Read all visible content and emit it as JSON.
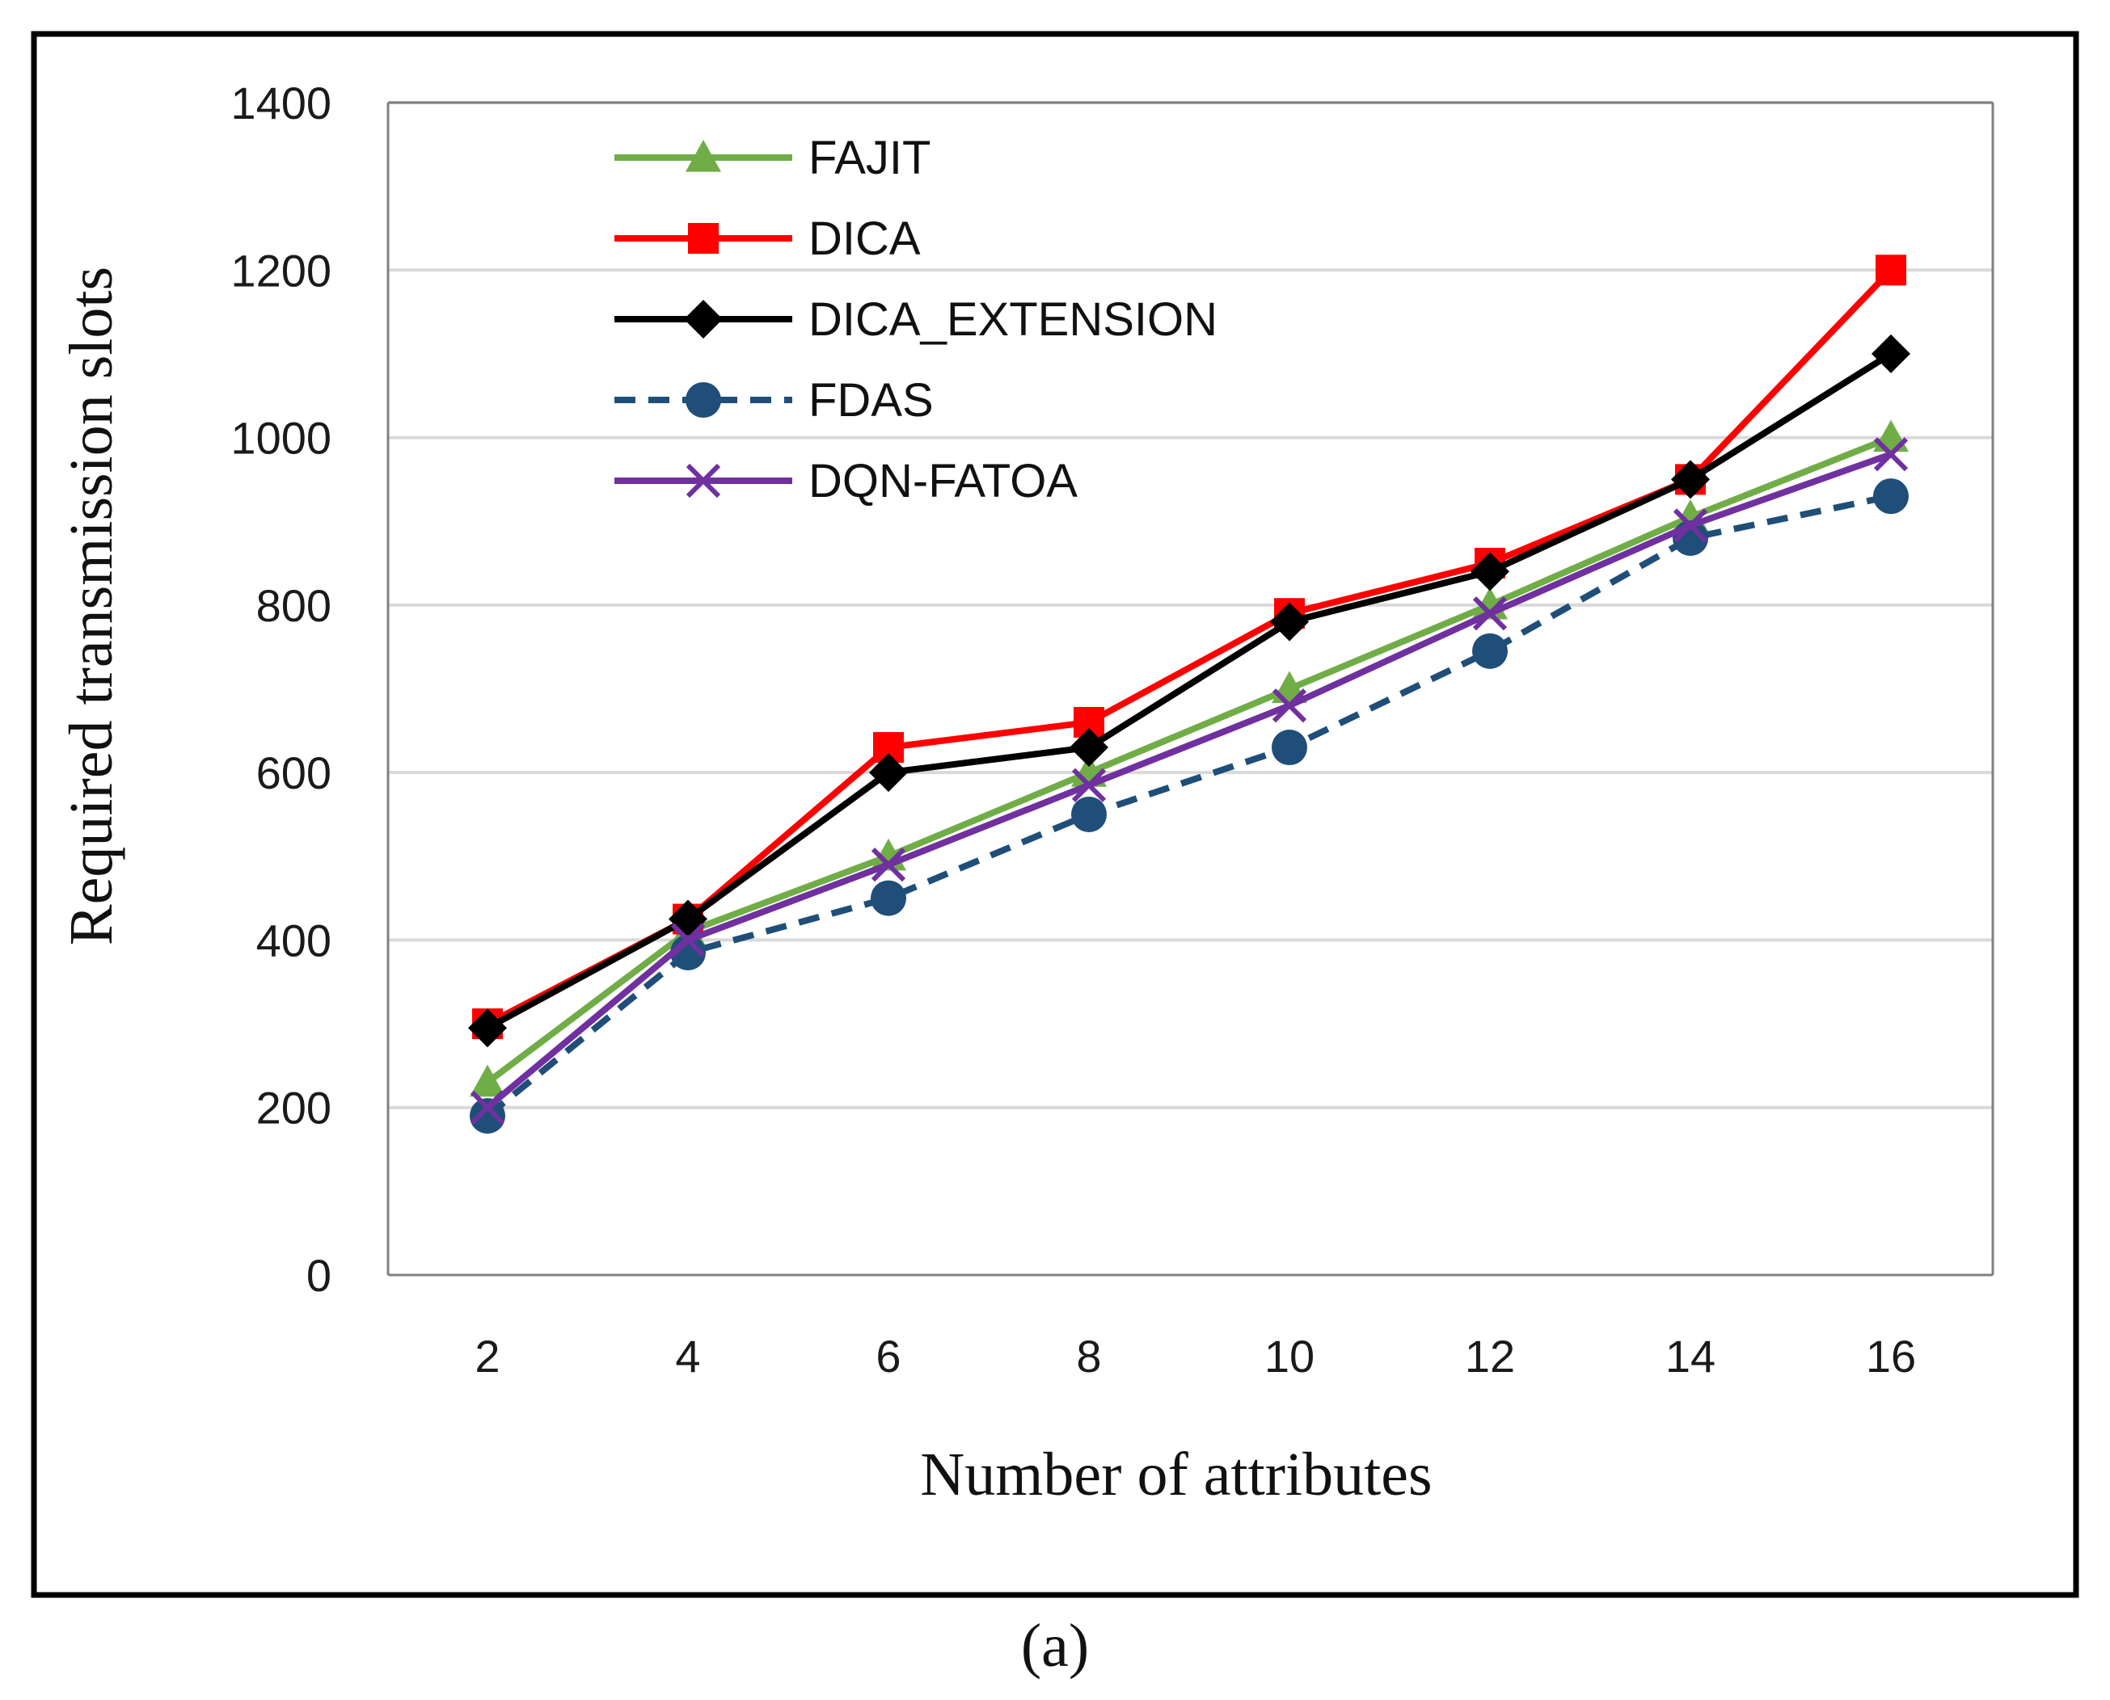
{
  "chart_data": {
    "type": "line",
    "title": "",
    "caption": "(a)",
    "xlabel": "Number of attributes",
    "ylabel": "Required transmission slots",
    "x": [
      2,
      4,
      6,
      8,
      10,
      12,
      14,
      16
    ],
    "xticks": [
      "2",
      "4",
      "6",
      "8",
      "10",
      "12",
      "14",
      "16"
    ],
    "yticks": [
      0,
      200,
      400,
      600,
      800,
      1000,
      1200,
      1400
    ],
    "ylim": [
      0,
      1400
    ],
    "grid": "horizontal",
    "legend_position": "top-left",
    "series": [
      {
        "name": "FAJIT",
        "color": "#70ad47",
        "marker": "triangle",
        "dash": "solid",
        "values": [
          230,
          410,
          500,
          600,
          700,
          800,
          905,
          1000
        ]
      },
      {
        "name": "DICA",
        "color": "#ff0000",
        "marker": "square",
        "dash": "solid",
        "values": [
          300,
          425,
          630,
          660,
          790,
          850,
          950,
          1200
        ]
      },
      {
        "name": "DICA_EXTENSION",
        "color": "#000000",
        "marker": "diamond",
        "dash": "solid",
        "values": [
          295,
          425,
          600,
          630,
          780,
          840,
          950,
          1100
        ]
      },
      {
        "name": "FDAS",
        "color": "#1f4e79",
        "marker": "circle",
        "dash": "dashed",
        "values": [
          190,
          385,
          450,
          550,
          630,
          745,
          880,
          930
        ]
      },
      {
        "name": "DQN-FATOA",
        "color": "#7030a0",
        "marker": "x",
        "dash": "solid",
        "values": [
          200,
          400,
          490,
          585,
          680,
          790,
          895,
          980
        ]
      }
    ]
  }
}
